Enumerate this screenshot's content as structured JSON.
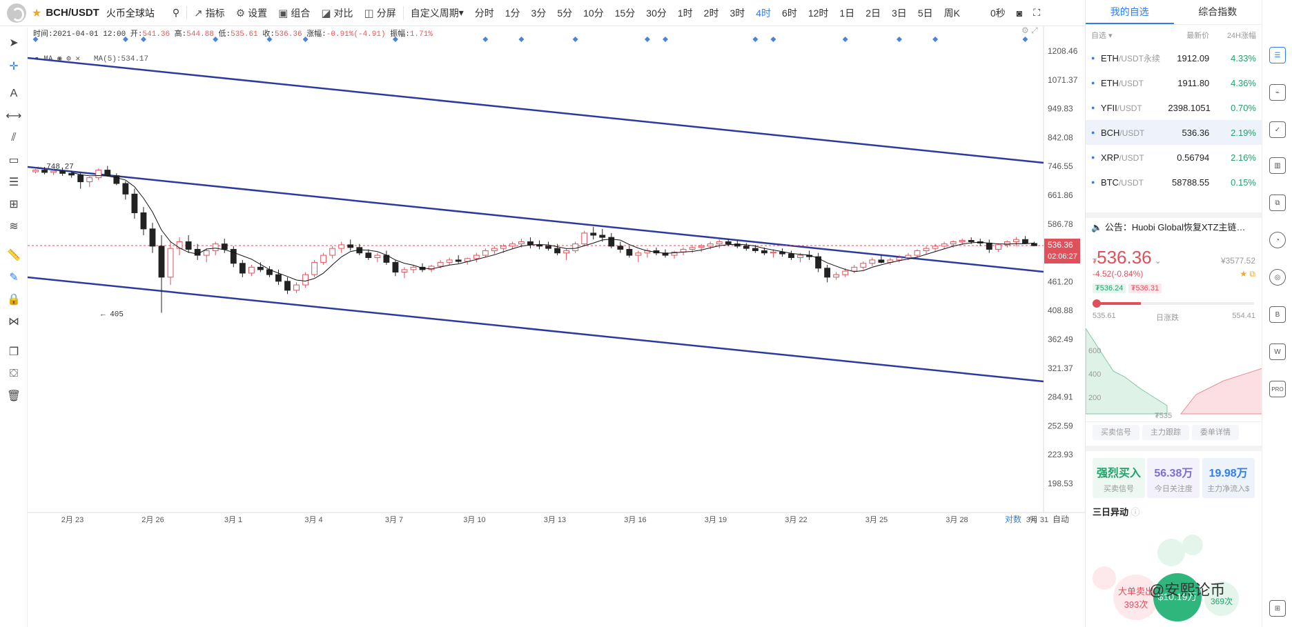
{
  "header": {
    "symbol": "BCH/USDT",
    "exchange": "火币全球站",
    "tools": [
      "指标",
      "设置",
      "组合",
      "对比",
      "分屏"
    ],
    "custom_period": "自定义周期",
    "periods": [
      "分时",
      "1分",
      "3分",
      "5分",
      "10分",
      "15分",
      "30分",
      "1时",
      "2时",
      "3时",
      "4时",
      "6时",
      "12时",
      "1日",
      "2日",
      "3日",
      "5日",
      "周K"
    ],
    "active_period": "4时",
    "countdown": "0秒"
  },
  "ohlc": {
    "time_label": "时间:",
    "time": "2021-04-01 12:00",
    "open_label": "开:",
    "open": "541.36",
    "high_label": "高:",
    "high": "544.88",
    "low_label": "低:",
    "low": "535.61",
    "close_label": "收:",
    "close": "536.36",
    "change_label": "涨幅:",
    "change": "-0.91%(-4.91)",
    "amp_label": "振幅:",
    "amp": "1.71%"
  },
  "ma": {
    "label": "MA",
    "value": "MA(5):534.17"
  },
  "chart_data": {
    "type": "candlestick",
    "price_axis": [
      "1208.46",
      "1071.37",
      "949.83",
      "842.08",
      "746.55",
      "661.86",
      "586.78",
      "520.20",
      "461.20",
      "408.88",
      "362.49",
      "321.37",
      "284.91",
      "252.59",
      "223.93",
      "198.53"
    ],
    "date_axis": [
      "2月 23",
      "2月 26",
      "3月 1",
      "3月 4",
      "3月 7",
      "3月 10",
      "3月 13",
      "3月 16",
      "3月 19",
      "3月 22",
      "3月 25",
      "3月 28",
      "3月 31"
    ],
    "annot_high": "← 748.27",
    "annot_low": "← 405",
    "last_price": "536.36",
    "countdown": "02:06:27",
    "axis_modes": [
      "对数",
      "%",
      "自动"
    ],
    "candles": [
      [
        730,
        738,
        725,
        735
      ],
      [
        735,
        745,
        722,
        728
      ],
      [
        728,
        738,
        720,
        732
      ],
      [
        732,
        740,
        718,
        725
      ],
      [
        725,
        733,
        712,
        720
      ],
      [
        720,
        728,
        680,
        700
      ],
      [
        700,
        715,
        685,
        712
      ],
      [
        712,
        740,
        705,
        735
      ],
      [
        735,
        748,
        715,
        718
      ],
      [
        718,
        725,
        690,
        695
      ],
      [
        695,
        702,
        650,
        665
      ],
      [
        665,
        680,
        600,
        615
      ],
      [
        615,
        630,
        560,
        575
      ],
      [
        575,
        590,
        520,
        535
      ],
      [
        535,
        560,
        405,
        470
      ],
      [
        470,
        545,
        455,
        530
      ],
      [
        530,
        555,
        515,
        545
      ],
      [
        545,
        560,
        520,
        528
      ],
      [
        528,
        540,
        505,
        515
      ],
      [
        515,
        530,
        500,
        525
      ],
      [
        525,
        545,
        515,
        540
      ],
      [
        540,
        552,
        520,
        528
      ],
      [
        528,
        535,
        490,
        498
      ],
      [
        498,
        505,
        470,
        478
      ],
      [
        478,
        495,
        472,
        490
      ],
      [
        490,
        500,
        480,
        485
      ],
      [
        485,
        492,
        470,
        475
      ],
      [
        475,
        485,
        455,
        462
      ],
      [
        462,
        470,
        438,
        445
      ],
      [
        445,
        460,
        440,
        455
      ],
      [
        455,
        480,
        450,
        475
      ],
      [
        475,
        505,
        470,
        500
      ],
      [
        500,
        520,
        495,
        515
      ],
      [
        515,
        535,
        508,
        530
      ],
      [
        530,
        545,
        520,
        538
      ],
      [
        538,
        550,
        525,
        532
      ],
      [
        532,
        540,
        515,
        520
      ],
      [
        520,
        528,
        505,
        510
      ],
      [
        510,
        520,
        500,
        515
      ],
      [
        515,
        525,
        495,
        500
      ],
      [
        500,
        505,
        472,
        480
      ],
      [
        480,
        490,
        468,
        485
      ],
      [
        485,
        495,
        478,
        490
      ],
      [
        490,
        498,
        480,
        485
      ],
      [
        485,
        495,
        480,
        492
      ],
      [
        492,
        505,
        488,
        500
      ],
      [
        500,
        510,
        495,
        505
      ],
      [
        505,
        515,
        498,
        502
      ],
      [
        502,
        510,
        495,
        508
      ],
      [
        508,
        520,
        500,
        515
      ],
      [
        515,
        530,
        510,
        525
      ],
      [
        525,
        535,
        518,
        530
      ],
      [
        530,
        540,
        520,
        535
      ],
      [
        535,
        545,
        528,
        540
      ],
      [
        540,
        552,
        532,
        545
      ],
      [
        545,
        555,
        530,
        538
      ],
      [
        538,
        548,
        528,
        535
      ],
      [
        535,
        545,
        525,
        530
      ],
      [
        530,
        540,
        515,
        520
      ],
      [
        520,
        530,
        505,
        525
      ],
      [
        525,
        545,
        520,
        540
      ],
      [
        540,
        570,
        535,
        565
      ],
      [
        565,
        580,
        550,
        560
      ],
      [
        560,
        575,
        545,
        555
      ],
      [
        555,
        565,
        530,
        535
      ],
      [
        535,
        545,
        520,
        528
      ],
      [
        528,
        535,
        510,
        515
      ],
      [
        515,
        525,
        500,
        520
      ],
      [
        520,
        530,
        510,
        525
      ],
      [
        525,
        532,
        515,
        520
      ],
      [
        520,
        528,
        510,
        515
      ],
      [
        515,
        525,
        508,
        522
      ],
      [
        522,
        532,
        515,
        528
      ],
      [
        528,
        538,
        520,
        532
      ],
      [
        532,
        540,
        522,
        535
      ],
      [
        535,
        545,
        528,
        540
      ],
      [
        540,
        550,
        530,
        545
      ],
      [
        545,
        552,
        535,
        540
      ],
      [
        540,
        548,
        530,
        535
      ],
      [
        535,
        542,
        525,
        530
      ],
      [
        530,
        538,
        520,
        525
      ],
      [
        525,
        532,
        515,
        520
      ],
      [
        520,
        528,
        510,
        522
      ],
      [
        522,
        530,
        512,
        518
      ],
      [
        518,
        525,
        505,
        510
      ],
      [
        510,
        520,
        500,
        515
      ],
      [
        515,
        525,
        505,
        512
      ],
      [
        512,
        520,
        480,
        488
      ],
      [
        488,
        495,
        460,
        470
      ],
      [
        470,
        480,
        465,
        475
      ],
      [
        475,
        488,
        470,
        482
      ],
      [
        482,
        495,
        478,
        490
      ],
      [
        490,
        502,
        485,
        498
      ],
      [
        498,
        510,
        492,
        505
      ],
      [
        505,
        515,
        498,
        500
      ],
      [
        500,
        510,
        495,
        505
      ],
      [
        505,
        515,
        500,
        510
      ],
      [
        510,
        520,
        505,
        515
      ],
      [
        515,
        528,
        510,
        525
      ],
      [
        525,
        535,
        518,
        530
      ],
      [
        530,
        540,
        522,
        535
      ],
      [
        535,
        545,
        528,
        540
      ],
      [
        540,
        548,
        532,
        545
      ],
      [
        545,
        552,
        538,
        548
      ],
      [
        548,
        555,
        540,
        545
      ],
      [
        545,
        552,
        535,
        542
      ],
      [
        542,
        550,
        520,
        528
      ],
      [
        528,
        540,
        522,
        538
      ],
      [
        538,
        548,
        532,
        545
      ],
      [
        545,
        556,
        535,
        550
      ],
      [
        550,
        558,
        540,
        541
      ],
      [
        541,
        545,
        535,
        536
      ]
    ]
  },
  "watchlist": {
    "tabs": [
      "我的自选",
      "综合指数"
    ],
    "group": "自选",
    "col_price": "最新价",
    "col_change": "24H涨幅",
    "items": [
      {
        "name": "ETH",
        "pair": "/USDT永续",
        "price": "1912.09",
        "change": "4.33%"
      },
      {
        "name": "ETH",
        "pair": "/USDT",
        "price": "1911.80",
        "change": "4.36%"
      },
      {
        "name": "YFII",
        "pair": "/USDT",
        "price": "2398.1051",
        "change": "0.70%"
      },
      {
        "name": "BCH",
        "pair": "/USDT",
        "price": "536.36",
        "change": "2.19%"
      },
      {
        "name": "XRP",
        "pair": "/USDT",
        "price": "0.56794",
        "change": "2.16%"
      },
      {
        "name": "BTC",
        "pair": "/USDT",
        "price": "58788.55",
        "change": "0.15%"
      }
    ]
  },
  "notice": "公告：Huobi Global恢复XTZ主链…",
  "quote": {
    "price": "536.36",
    "cny": "¥3577.52",
    "change": "-4.52(-0.84%)",
    "bid": "₮536.24",
    "ask": "₮536.31",
    "low": "535.61",
    "range_label": "日涨跌",
    "high": "554.41",
    "depth_levels": [
      "600",
      "400",
      "200"
    ],
    "depth_price": "₮535",
    "tabs": [
      "买卖信号",
      "主力跟踪",
      "委单详情"
    ],
    "signal": "强烈买入",
    "signal_label": "买卖信号",
    "attention": "56.38万",
    "attention_label": "今日关注度",
    "inflow": "19.98万",
    "inflow_label": "主力净流入$",
    "section": "三日异动",
    "bubble_sell": "大单卖出",
    "bubble_sell_count": "393次",
    "bubble_amount": "$10.19万",
    "bubble_count": "369次",
    "watermark": "@安熙论币"
  }
}
